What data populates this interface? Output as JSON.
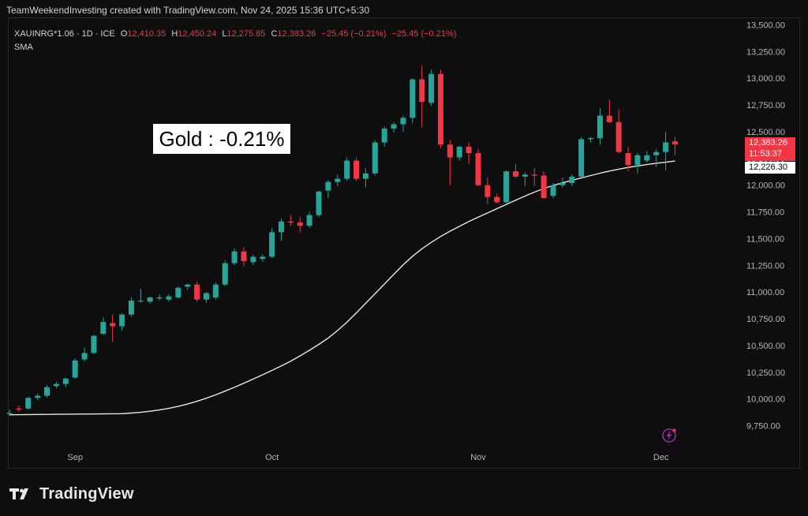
{
  "header": {
    "credit": "TeamWeekendInvesting created with TradingView.com, Nov 24, 2025 15:36 UTC+5:30"
  },
  "legend": {
    "symbol": "XAUINRG*1.06 · 1D · ICE",
    "open_label": "O",
    "open": "12,410.35",
    "high_label": "H",
    "high": "12,450.24",
    "low_label": "L",
    "low": "12,275.85",
    "close_label": "C",
    "close": "12,383.26",
    "change": "−25.45 (−0.21%)",
    "change2": "−25.45 (−0.21%)",
    "indicator": "SMA"
  },
  "annotation": "Gold : -0.21%",
  "price_tags": {
    "last": "12,383.26",
    "countdown": "11:53:37",
    "sma": "12,226.30"
  },
  "footer": {
    "brand": "TradingView"
  },
  "colors": {
    "up": "#26a69a",
    "down": "#f23645",
    "sma": "#e6e6e6",
    "background": "#0e0e0e",
    "axis_text": "#b2b5be"
  },
  "chart_data": {
    "type": "candlestick",
    "ylim": [
      9650,
      13550
    ],
    "y_ticks": [
      9750,
      10000,
      10250,
      10500,
      10750,
      11000,
      11250,
      11500,
      11750,
      12000,
      12250,
      12500,
      12750,
      13000,
      13250,
      13500
    ],
    "y_tick_labels": [
      "9,750.00",
      "10,000.00",
      "10,250.00",
      "10,500.00",
      "10,750.00",
      "11,000.00",
      "11,250.00",
      "11,500.00",
      "11,750.00",
      "12,000.00",
      "12,250.00",
      "12,500.00",
      "12,750.00",
      "13,000.00",
      "13,250.00",
      "13,500.00"
    ],
    "x_labels": [
      {
        "label": "Sep",
        "index": 7
      },
      {
        "label": "Oct",
        "index": 28
      },
      {
        "label": "Nov",
        "index": 50
      },
      {
        "label": "Dec",
        "index": 69.5
      }
    ],
    "candles": [
      {
        "o": 9860,
        "h": 9900,
        "l": 9840,
        "c": 9870
      },
      {
        "o": 9910,
        "h": 9940,
        "l": 9880,
        "c": 9900
      },
      {
        "o": 9910,
        "h": 10020,
        "l": 9900,
        "c": 10010
      },
      {
        "o": 10010,
        "h": 10050,
        "l": 9990,
        "c": 10030
      },
      {
        "o": 10030,
        "h": 10130,
        "l": 10010,
        "c": 10110
      },
      {
        "o": 10120,
        "h": 10160,
        "l": 10100,
        "c": 10140
      },
      {
        "o": 10140,
        "h": 10200,
        "l": 10110,
        "c": 10190
      },
      {
        "o": 10200,
        "h": 10380,
        "l": 10190,
        "c": 10360
      },
      {
        "o": 10370,
        "h": 10480,
        "l": 10350,
        "c": 10430
      },
      {
        "o": 10430,
        "h": 10600,
        "l": 10420,
        "c": 10590
      },
      {
        "o": 10610,
        "h": 10760,
        "l": 10600,
        "c": 10720
      },
      {
        "o": 10710,
        "h": 10790,
        "l": 10530,
        "c": 10680
      },
      {
        "o": 10680,
        "h": 10800,
        "l": 10640,
        "c": 10790
      },
      {
        "o": 10790,
        "h": 10950,
        "l": 10770,
        "c": 10920
      },
      {
        "o": 10920,
        "h": 11030,
        "l": 10900,
        "c": 10920
      },
      {
        "o": 10910,
        "h": 10960,
        "l": 10890,
        "c": 10950
      },
      {
        "o": 10940,
        "h": 10980,
        "l": 10920,
        "c": 10950
      },
      {
        "o": 10930,
        "h": 10980,
        "l": 10910,
        "c": 10960
      },
      {
        "o": 10950,
        "h": 11050,
        "l": 10940,
        "c": 11040
      },
      {
        "o": 11050,
        "h": 11080,
        "l": 11020,
        "c": 11070
      },
      {
        "o": 11070,
        "h": 11100,
        "l": 10910,
        "c": 10930
      },
      {
        "o": 10930,
        "h": 11000,
        "l": 10900,
        "c": 10990
      },
      {
        "o": 10950,
        "h": 11090,
        "l": 10930,
        "c": 11070
      },
      {
        "o": 11070,
        "h": 11300,
        "l": 11060,
        "c": 11270
      },
      {
        "o": 11270,
        "h": 11410,
        "l": 11250,
        "c": 11380
      },
      {
        "o": 11380,
        "h": 11420,
        "l": 11240,
        "c": 11290
      },
      {
        "o": 11280,
        "h": 11350,
        "l": 11250,
        "c": 11330
      },
      {
        "o": 11310,
        "h": 11350,
        "l": 11280,
        "c": 11330
      },
      {
        "o": 11330,
        "h": 11600,
        "l": 11320,
        "c": 11560
      },
      {
        "o": 11560,
        "h": 11690,
        "l": 11480,
        "c": 11660
      },
      {
        "o": 11660,
        "h": 11720,
        "l": 11620,
        "c": 11650
      },
      {
        "o": 11650,
        "h": 11700,
        "l": 11560,
        "c": 11620
      },
      {
        "o": 11620,
        "h": 11750,
        "l": 11600,
        "c": 11720
      },
      {
        "o": 11720,
        "h": 11950,
        "l": 11700,
        "c": 11940
      },
      {
        "o": 11950,
        "h": 12050,
        "l": 11880,
        "c": 12030
      },
      {
        "o": 12030,
        "h": 12100,
        "l": 11990,
        "c": 12060
      },
      {
        "o": 12060,
        "h": 12260,
        "l": 12040,
        "c": 12230
      },
      {
        "o": 12230,
        "h": 12260,
        "l": 12040,
        "c": 12060
      },
      {
        "o": 12060,
        "h": 12160,
        "l": 11980,
        "c": 12110
      },
      {
        "o": 12110,
        "h": 12420,
        "l": 12090,
        "c": 12400
      },
      {
        "o": 12400,
        "h": 12550,
        "l": 12360,
        "c": 12530
      },
      {
        "o": 12530,
        "h": 12590,
        "l": 12490,
        "c": 12570
      },
      {
        "o": 12570,
        "h": 12650,
        "l": 12500,
        "c": 12630
      },
      {
        "o": 12630,
        "h": 13000,
        "l": 12580,
        "c": 12990
      },
      {
        "o": 12990,
        "h": 13120,
        "l": 12540,
        "c": 12780
      },
      {
        "o": 12770,
        "h": 13080,
        "l": 12740,
        "c": 13040
      },
      {
        "o": 13040,
        "h": 13080,
        "l": 12350,
        "c": 12380
      },
      {
        "o": 12380,
        "h": 12420,
        "l": 12000,
        "c": 12260
      },
      {
        "o": 12260,
        "h": 12370,
        "l": 12230,
        "c": 12360
      },
      {
        "o": 12360,
        "h": 12400,
        "l": 12200,
        "c": 12300
      },
      {
        "o": 12300,
        "h": 12340,
        "l": 11990,
        "c": 12000
      },
      {
        "o": 12000,
        "h": 12070,
        "l": 11820,
        "c": 11890
      },
      {
        "o": 11890,
        "h": 11920,
        "l": 11830,
        "c": 11840
      },
      {
        "o": 11840,
        "h": 12140,
        "l": 11820,
        "c": 12130
      },
      {
        "o": 12130,
        "h": 12200,
        "l": 12070,
        "c": 12080
      },
      {
        "o": 12080,
        "h": 12120,
        "l": 11990,
        "c": 12100
      },
      {
        "o": 12100,
        "h": 12160,
        "l": 11990,
        "c": 12090
      },
      {
        "o": 12090,
        "h": 12130,
        "l": 11880,
        "c": 11880
      },
      {
        "o": 11900,
        "h": 12020,
        "l": 11880,
        "c": 12000
      },
      {
        "o": 12000,
        "h": 12070,
        "l": 11980,
        "c": 12020
      },
      {
        "o": 12020,
        "h": 12100,
        "l": 11990,
        "c": 12080
      },
      {
        "o": 12080,
        "h": 12450,
        "l": 12070,
        "c": 12430
      },
      {
        "o": 12430,
        "h": 12450,
        "l": 12400,
        "c": 12440
      },
      {
        "o": 12440,
        "h": 12720,
        "l": 12380,
        "c": 12650
      },
      {
        "o": 12650,
        "h": 12800,
        "l": 12580,
        "c": 12590
      },
      {
        "o": 12590,
        "h": 12710,
        "l": 12300,
        "c": 12310
      },
      {
        "o": 12300,
        "h": 12360,
        "l": 12130,
        "c": 12190
      },
      {
        "o": 12190,
        "h": 12300,
        "l": 12110,
        "c": 12280
      },
      {
        "o": 12230,
        "h": 12320,
        "l": 12210,
        "c": 12280
      },
      {
        "o": 12280,
        "h": 12340,
        "l": 12170,
        "c": 12310
      },
      {
        "o": 12310,
        "h": 12500,
        "l": 12140,
        "c": 12400
      },
      {
        "o": 12410,
        "h": 12450,
        "l": 12280,
        "c": 12383
      }
    ],
    "sma": [
      9862,
      9868,
      9875,
      9885,
      9897,
      9912,
      9930,
      9952,
      9978,
      10007,
      10039,
      10073,
      10109,
      10147,
      10186,
      10226,
      10267,
      10309,
      10354,
      10403,
      10455,
      10510,
      10570,
      10640,
      10718,
      10805,
      10895,
      10985,
      11075,
      11165,
      11255,
      11335,
      11405,
      11465,
      11520,
      11570,
      11615,
      11660,
      11700,
      11740,
      11780,
      11820,
      11860,
      11898,
      11935,
      11968,
      11997,
      12022,
      12045,
      12068,
      12090,
      12112,
      12132,
      12150,
      12166,
      12180,
      12193,
      12205,
      12215,
      12226
    ]
  }
}
